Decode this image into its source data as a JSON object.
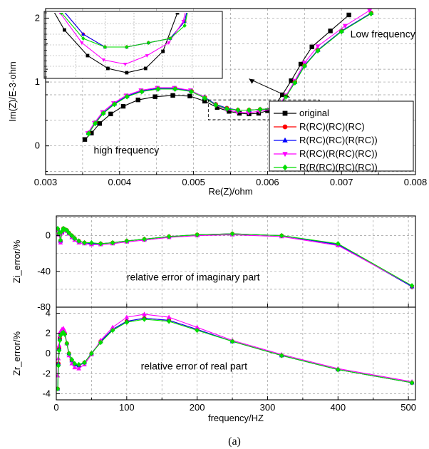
{
  "caption": "(a)",
  "chart_data": [
    {
      "type": "line",
      "xlabel": "Re(Z)/ohm",
      "ylabel": "Im(Z)/E-3·ohm",
      "xlim": [
        0.003,
        0.008
      ],
      "ylim": [
        -0.45,
        2.15
      ],
      "xticks": [
        "0.003",
        "0.004",
        "0.005",
        "0.006",
        "0.007",
        "0.008"
      ],
      "yticks": [
        "0",
        "1",
        "2"
      ],
      "grid": true,
      "legend_position": "bottom-right",
      "annotations": [
        "high frequency",
        "Low frequency"
      ],
      "series": [
        {
          "name": "original",
          "color": "#000000",
          "marker": "square",
          "x": [
            0.00353,
            0.00362,
            0.00373,
            0.00388,
            0.00405,
            0.00425,
            0.00448,
            0.00472,
            0.00495,
            0.00515,
            0.00532,
            0.00548,
            0.00562,
            0.00575,
            0.00588,
            0.006,
            0.0061,
            0.0062,
            0.00632,
            0.00645,
            0.0066,
            0.00685,
            0.0071
          ],
          "y": [
            0.1,
            0.2,
            0.35,
            0.5,
            0.62,
            0.72,
            0.77,
            0.79,
            0.78,
            0.7,
            0.6,
            0.54,
            0.51,
            0.5,
            0.51,
            0.55,
            0.64,
            0.8,
            1.02,
            1.28,
            1.55,
            1.8,
            2.05
          ]
        },
        {
          "name": "R(RC)(RC)(RC)",
          "color": "#ff0000",
          "marker": "circle",
          "x": [
            0.00358,
            0.00367,
            0.00378,
            0.00393,
            0.0041,
            0.0043,
            0.00452,
            0.00475,
            0.00497,
            0.00515,
            0.0053,
            0.00545,
            0.0056,
            0.00575,
            0.0059,
            0.00605,
            0.00615,
            0.00625,
            0.00637,
            0.0065,
            0.00668,
            0.007,
            0.0074
          ],
          "y": [
            0.2,
            0.36,
            0.52,
            0.66,
            0.78,
            0.86,
            0.9,
            0.9,
            0.86,
            0.76,
            0.65,
            0.59,
            0.56,
            0.56,
            0.57,
            0.58,
            0.62,
            0.78,
            1.0,
            1.26,
            1.5,
            1.8,
            2.08
          ]
        },
        {
          "name": "R(RC)(RC)(R(RC))",
          "color": "#0000ff",
          "marker": "triangle-up",
          "x": [
            0.00358,
            0.00367,
            0.00378,
            0.00393,
            0.0041,
            0.0043,
            0.00452,
            0.00475,
            0.00497,
            0.00515,
            0.0053,
            0.00545,
            0.0056,
            0.00575,
            0.0059,
            0.00605,
            0.00615,
            0.00625,
            0.00637,
            0.0065,
            0.00668,
            0.007,
            0.0074
          ],
          "y": [
            0.2,
            0.36,
            0.52,
            0.66,
            0.78,
            0.86,
            0.9,
            0.9,
            0.86,
            0.76,
            0.65,
            0.59,
            0.56,
            0.56,
            0.57,
            0.58,
            0.62,
            0.78,
            1.0,
            1.26,
            1.5,
            1.8,
            2.08
          ]
        },
        {
          "name": "R(RC)(R(RC)(RC))",
          "color": "#ff00ff",
          "marker": "triangle-down",
          "x": [
            0.00357,
            0.00366,
            0.00377,
            0.00392,
            0.00409,
            0.00429,
            0.00451,
            0.00474,
            0.00496,
            0.00514,
            0.00529,
            0.00544,
            0.00559,
            0.00574,
            0.00589,
            0.00604,
            0.00614,
            0.00625,
            0.00637,
            0.0065,
            0.00668,
            0.00705,
            0.00738
          ],
          "y": [
            0.2,
            0.36,
            0.53,
            0.67,
            0.79,
            0.87,
            0.91,
            0.91,
            0.87,
            0.76,
            0.64,
            0.57,
            0.53,
            0.52,
            0.54,
            0.57,
            0.62,
            0.79,
            1.02,
            1.3,
            1.56,
            1.88,
            2.12
          ]
        },
        {
          "name": "R(R(RC)(RC)(RC))",
          "color": "#00dd00",
          "marker": "diamond",
          "x": [
            0.00358,
            0.00367,
            0.00378,
            0.00393,
            0.0041,
            0.0043,
            0.00452,
            0.00475,
            0.00497,
            0.00515,
            0.0053,
            0.00545,
            0.0056,
            0.00575,
            0.0059,
            0.00605,
            0.00615,
            0.00625,
            0.00637,
            0.0065,
            0.00668,
            0.007,
            0.0074
          ],
          "y": [
            0.19,
            0.35,
            0.51,
            0.65,
            0.77,
            0.85,
            0.89,
            0.89,
            0.85,
            0.75,
            0.64,
            0.58,
            0.56,
            0.56,
            0.57,
            0.58,
            0.61,
            0.77,
            0.99,
            1.25,
            1.49,
            1.79,
            2.07
          ]
        }
      ]
    },
    {
      "type": "line",
      "xlabel": "",
      "ylabel": "Zi_error/%",
      "xlim": [
        0,
        510
      ],
      "ylim": [
        -80,
        22
      ],
      "yticks": [
        "0",
        "-40",
        "-80"
      ],
      "grid": true,
      "annotations": [
        "relative error of imaginary part"
      ],
      "series": [
        {
          "name": "R(RC)(RC)(RC)",
          "color": "#ff0000",
          "marker": "circle",
          "x": [
            2,
            4,
            6,
            8,
            10,
            12,
            15,
            18,
            22,
            26,
            32,
            40,
            50,
            63,
            80,
            100,
            125,
            160,
            200,
            250,
            320,
            400,
            505
          ],
          "y": [
            7,
            2,
            -6,
            4,
            8,
            7,
            6,
            3,
            0,
            -3,
            -6,
            -8,
            -9,
            -9,
            -8,
            -6,
            -4,
            -1,
            1,
            2,
            0,
            -10,
            -57
          ]
        },
        {
          "name": "R(RC)(RC)(R(RC))",
          "color": "#0000ff",
          "marker": "triangle-up",
          "x": [
            2,
            4,
            6,
            8,
            10,
            12,
            15,
            18,
            22,
            26,
            32,
            40,
            50,
            63,
            80,
            100,
            125,
            160,
            200,
            250,
            320,
            400,
            505
          ],
          "y": [
            7,
            2,
            -6,
            4,
            8,
            7,
            6,
            3,
            0,
            -3,
            -6,
            -8,
            -9,
            -9,
            -8,
            -6,
            -4,
            -1,
            1,
            2,
            0,
            -10,
            -57
          ]
        },
        {
          "name": "R(RC)(R(RC)(RC))",
          "color": "#ff00ff",
          "marker": "triangle-up",
          "x": [
            2,
            4,
            6,
            8,
            10,
            12,
            15,
            18,
            22,
            26,
            32,
            40,
            50,
            63,
            80,
            100,
            125,
            160,
            200,
            250,
            320,
            400,
            505
          ],
          "y": [
            6,
            1,
            -8,
            3,
            7,
            6,
            5,
            2,
            -2,
            -5,
            -8,
            -9,
            -10,
            -10,
            -9,
            -7,
            -5,
            -2,
            0,
            1,
            -1,
            -11,
            -56
          ]
        },
        {
          "name": "R(R(RC)(RC)(RC))",
          "color": "#00dd00",
          "marker": "diamond",
          "x": [
            2,
            4,
            6,
            8,
            10,
            12,
            15,
            18,
            22,
            26,
            32,
            40,
            50,
            63,
            80,
            100,
            125,
            160,
            200,
            250,
            320,
            400,
            505
          ],
          "y": [
            8,
            3,
            -5,
            5,
            8,
            7,
            6,
            3,
            0,
            -3,
            -6,
            -8,
            -8,
            -9,
            -8,
            -6,
            -4,
            -1,
            1,
            2,
            0,
            -9,
            -56
          ]
        }
      ]
    },
    {
      "type": "line",
      "xlabel": "frequency/HZ",
      "ylabel": "Zr_error/%",
      "xlim": [
        0,
        510
      ],
      "ylim": [
        -4.6,
        4.6
      ],
      "xticks": [
        "0",
        "100",
        "200",
        "300",
        "400",
        "500"
      ],
      "yticks": [
        "4",
        "2",
        "0",
        "-2",
        "-4"
      ],
      "grid": true,
      "annotations": [
        "relative error of real part"
      ],
      "series": [
        {
          "name": "R(RC)(RC)(RC)",
          "color": "#ff0000",
          "marker": "circle",
          "x": [
            2,
            3,
            4,
            5,
            6,
            8,
            10,
            12,
            15,
            18,
            22,
            26,
            32,
            40,
            50,
            63,
            80,
            100,
            125,
            160,
            200,
            250,
            320,
            400,
            505
          ],
          "y": [
            -3.5,
            -1.0,
            0.5,
            1.5,
            2.0,
            2.2,
            2.3,
            2.0,
            1.0,
            0.0,
            -0.7,
            -1.1,
            -1.2,
            -0.9,
            0.0,
            1.2,
            2.4,
            3.2,
            3.5,
            3.3,
            2.4,
            1.2,
            -0.2,
            -1.6,
            -2.9
          ]
        },
        {
          "name": "R(RC)(RC)(R(RC))",
          "color": "#0000ff",
          "marker": "triangle-up",
          "x": [
            2,
            3,
            4,
            5,
            6,
            8,
            10,
            12,
            15,
            18,
            22,
            26,
            32,
            40,
            50,
            63,
            80,
            100,
            125,
            160,
            200,
            250,
            320,
            400,
            505
          ],
          "y": [
            -3.5,
            -1.0,
            0.5,
            1.5,
            2.0,
            2.2,
            2.3,
            2.0,
            1.0,
            0.0,
            -0.7,
            -1.1,
            -1.2,
            -0.9,
            0.0,
            1.2,
            2.4,
            3.2,
            3.5,
            3.3,
            2.4,
            1.2,
            -0.2,
            -1.6,
            -2.9
          ]
        },
        {
          "name": "R(RC)(R(RC)(RC))",
          "color": "#ff00ff",
          "marker": "triangle-up",
          "x": [
            2,
            3,
            4,
            5,
            6,
            8,
            10,
            12,
            15,
            18,
            22,
            26,
            32,
            40,
            50,
            63,
            80,
            100,
            125,
            160,
            200,
            250,
            320,
            400,
            505
          ],
          "y": [
            -2.2,
            -0.5,
            0.8,
            1.8,
            2.2,
            2.4,
            2.5,
            2.2,
            1.0,
            -0.2,
            -1.0,
            -1.4,
            -1.5,
            -1.1,
            -0.1,
            1.3,
            2.6,
            3.6,
            3.9,
            3.6,
            2.6,
            1.3,
            -0.1,
            -1.5,
            -2.8
          ]
        },
        {
          "name": "R(R(RC)(RC)(RC))",
          "color": "#00dd00",
          "marker": "diamond",
          "x": [
            2,
            3,
            4,
            5,
            6,
            8,
            10,
            12,
            15,
            18,
            22,
            26,
            32,
            40,
            50,
            63,
            80,
            100,
            125,
            160,
            200,
            250,
            320,
            400,
            505
          ],
          "y": [
            -3.5,
            -1.2,
            0.3,
            1.3,
            1.8,
            2.0,
            2.1,
            1.9,
            1.0,
            0.0,
            -0.6,
            -1.0,
            -1.1,
            -0.9,
            0.0,
            1.1,
            2.3,
            3.1,
            3.4,
            3.2,
            2.3,
            1.2,
            -0.2,
            -1.6,
            -2.9
          ]
        }
      ]
    }
  ]
}
